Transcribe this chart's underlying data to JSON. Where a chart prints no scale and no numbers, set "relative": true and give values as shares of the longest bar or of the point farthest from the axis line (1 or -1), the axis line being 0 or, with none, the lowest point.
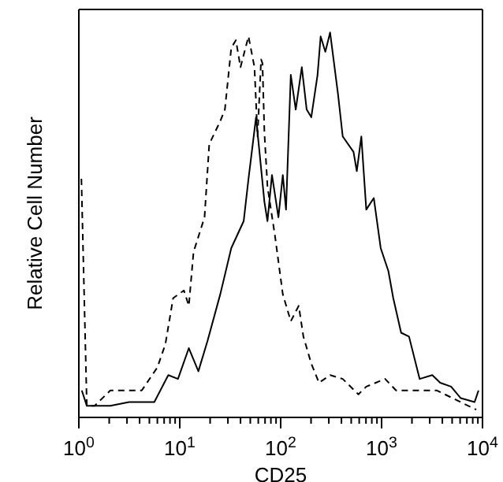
{
  "chart_data": {
    "type": "line",
    "relative": true,
    "ylabel": "Relative Cell Number",
    "xlabel": "CD25",
    "log": "x",
    "xlim": [
      1,
      10000
    ],
    "xticks": [
      {
        "value": 1,
        "label": "10$^{0}$"
      },
      {
        "value": 2,
        "label": null
      },
      {
        "value": 3,
        "label": null
      },
      {
        "value": 4,
        "label": null
      },
      {
        "value": 5,
        "label": null
      },
      {
        "value": 6,
        "label": null
      },
      {
        "value": 7,
        "label": null
      },
      {
        "value": 8,
        "label": null
      },
      {
        "value": 9,
        "label": null
      },
      {
        "value": 10,
        "label": "10$^{1}$"
      },
      {
        "value": 20,
        "label": null
      },
      {
        "value": 30,
        "label": null
      },
      {
        "value": 40,
        "label": null
      },
      {
        "value": 50,
        "label": null
      },
      {
        "value": 60,
        "label": null
      },
      {
        "value": 70,
        "label": null
      },
      {
        "value": 80,
        "label": null
      },
      {
        "value": 90,
        "label": null
      },
      {
        "value": 100,
        "label": "10$^{2}$"
      },
      {
        "value": 200,
        "label": null
      },
      {
        "value": 300,
        "label": null
      },
      {
        "value": 400,
        "label": null
      },
      {
        "value": 500,
        "label": null
      },
      {
        "value": 600,
        "label": null
      },
      {
        "value": 700,
        "label": null
      },
      {
        "value": 800,
        "label": null
      },
      {
        "value": 900,
        "label": null
      },
      {
        "value": 1000,
        "label": "10$^{3}$"
      },
      {
        "value": 2000,
        "label": null
      },
      {
        "value": 3000,
        "label": null
      },
      {
        "value": 4000,
        "label": null
      },
      {
        "value": 5000,
        "label": null
      },
      {
        "value": 6000,
        "label": null
      },
      {
        "value": 7000,
        "label": null
      },
      {
        "value": 8000,
        "label": null
      },
      {
        "value": 9000,
        "label": null
      },
      {
        "value": 10000,
        "label": "10$^{4}$"
      }
    ],
    "grid": false,
    "legend": false,
    "marker": "none",
    "series": [
      {
        "color": "#000000",
        "line_style": "dashed",
        "x": [
          1.06,
          1.2,
          1.43,
          2.05,
          2.93,
          4.2,
          6.0,
          7.2,
          8.6,
          11,
          12.3,
          13.7,
          17.6,
          19.6,
          25.2,
          28,
          32.4,
          36,
          40,
          48,
          55,
          59,
          64,
          66,
          69,
          74,
          88,
          105,
          126,
          151,
          168,
          201,
          240,
          309,
          412,
          589,
          705,
          1084,
          1393,
          2384,
          3539,
          5058,
          8670
        ],
        "values": [
          0.62,
          0.03,
          0.03,
          0.07,
          0.07,
          0.07,
          0.13,
          0.19,
          0.31,
          0.33,
          0.29,
          0.43,
          0.52,
          0.71,
          0.77,
          0.8,
          0.96,
          0.98,
          0.91,
          0.99,
          0.91,
          0.73,
          0.93,
          0.92,
          0.74,
          0.6,
          0.47,
          0.32,
          0.25,
          0.29,
          0.21,
          0.14,
          0.09,
          0.11,
          0.1,
          0.06,
          0.08,
          0.1,
          0.07,
          0.07,
          0.07,
          0.05,
          0.02
        ]
      },
      {
        "color": "#000000",
        "line_style": "solid",
        "x": [
          1.07,
          1.2,
          2.05,
          3.15,
          5.6,
          7.7,
          9.6,
          12.3,
          15.3,
          18.9,
          25.2,
          32.4,
          43,
          48,
          57,
          69,
          74,
          82,
          95,
          105,
          113,
          126,
          141,
          162,
          181,
          201,
          232,
          249,
          277,
          309,
          370,
          412,
          527,
          568,
          630,
          705,
          837,
          980,
          1168,
          1305,
          1562,
          1870,
          2384,
          3180,
          3810,
          4880,
          6090,
          8350,
          9130
        ],
        "values": [
          0.07,
          0.03,
          0.03,
          0.04,
          0.04,
          0.11,
          0.1,
          0.18,
          0.12,
          0.2,
          0.32,
          0.44,
          0.51,
          0.62,
          0.78,
          0.56,
          0.51,
          0.63,
          0.52,
          0.63,
          0.54,
          0.89,
          0.8,
          0.91,
          0.8,
          0.78,
          0.89,
          0.99,
          0.95,
          1,
          0.84,
          0.73,
          0.69,
          0.64,
          0.73,
          0.54,
          0.57,
          0.44,
          0.38,
          0.31,
          0.22,
          0.21,
          0.1,
          0.11,
          0.09,
          0.08,
          0.05,
          0.04,
          0.07
        ]
      }
    ]
  }
}
